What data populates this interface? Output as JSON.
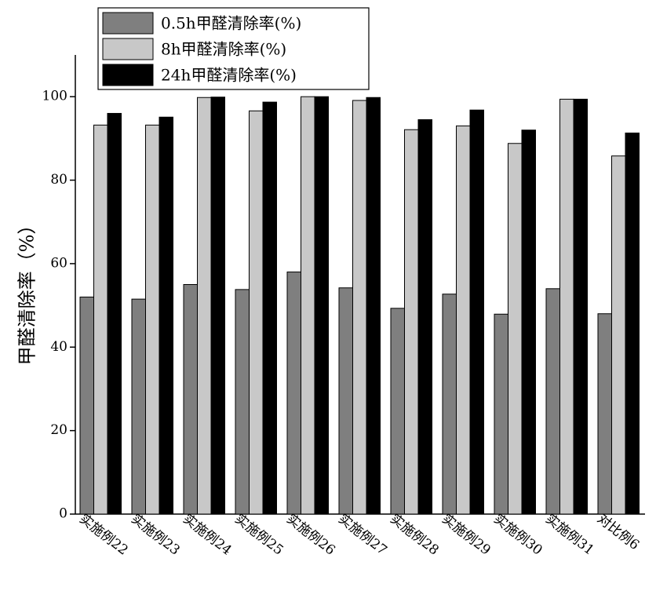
{
  "chart_data": {
    "type": "bar",
    "ylabel": "甲醛清除率（%）",
    "ylim": [
      0,
      110
    ],
    "yticks": [
      0,
      20,
      40,
      60,
      80,
      100
    ],
    "categories": [
      "实施例22",
      "实施例23",
      "实施例24",
      "实施例25",
      "实施例26",
      "实施例27",
      "实施例28",
      "实施例29",
      "实施例30",
      "实施例31",
      "对比例6"
    ],
    "series": [
      {
        "name": "0.5h甲醛清除率(%)",
        "color": "#7f7f7f",
        "values": [
          52.0,
          51.5,
          55.0,
          53.8,
          58.0,
          54.2,
          49.3,
          52.7,
          47.9,
          54.0,
          48.0
        ]
      },
      {
        "name": "8h甲醛清除率(%)",
        "color": "#c8c8c8",
        "values": [
          93.2,
          93.2,
          99.8,
          96.6,
          100.0,
          99.1,
          92.1,
          93.0,
          88.8,
          99.4,
          85.8
        ]
      },
      {
        "name": "24h甲醛清除率(%)",
        "color": "#000000",
        "values": [
          96.0,
          95.1,
          99.9,
          98.7,
          100.0,
          99.8,
          94.5,
          96.8,
          92.0,
          99.4,
          91.3
        ]
      }
    ],
    "legend_position": "top-left",
    "grid": false
  }
}
